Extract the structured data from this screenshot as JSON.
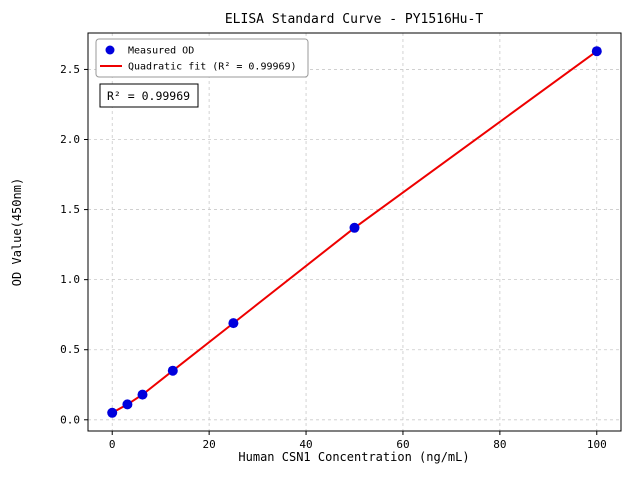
{
  "chart_data": {
    "type": "scatter",
    "title": "ELISA Standard Curve - PY1516Hu-T",
    "xlabel": "Human CSN1 Concentration (ng/mL)",
    "ylabel": "OD Value(450nm)",
    "xlim": [
      -5,
      105
    ],
    "ylim": [
      -0.08,
      2.76
    ],
    "xticks": {
      "values": [
        0,
        20,
        40,
        60,
        80,
        100
      ],
      "labels": [
        "0",
        "20",
        "40",
        "60",
        "80",
        "100"
      ]
    },
    "yticks": {
      "values": [
        0.0,
        0.5,
        1.0,
        1.5,
        2.0,
        2.5
      ],
      "labels": [
        "0.0",
        "0.5",
        "1.0",
        "1.5",
        "2.0",
        "2.5"
      ]
    },
    "grid": {
      "show": true,
      "color": "#c9c9c9",
      "dash": "3,3"
    },
    "annotation": {
      "text": "R² = 0.99969"
    },
    "legend": {
      "position": "upper-left",
      "entries": [
        {
          "label": "Measured OD",
          "marker": "circle",
          "color": "#0000dd"
        },
        {
          "label": "Quadratic fit (R² = 0.99969)",
          "marker": "line",
          "color": "#ee0000"
        }
      ]
    },
    "series": [
      {
        "name": "Measured OD",
        "type": "scatter",
        "color": "#0000dd",
        "marker_radius": 5,
        "x": [
          0,
          3.125,
          6.25,
          12.5,
          25,
          50,
          100
        ],
        "y": [
          0.05,
          0.11,
          0.18,
          0.35,
          0.69,
          1.37,
          2.63
        ]
      },
      {
        "name": "Quadratic fit (R² = 0.99969)",
        "type": "line",
        "color": "#ee0000",
        "width": 2,
        "x": [
          0,
          3.125,
          6.25,
          12.5,
          25,
          50,
          100
        ],
        "y": [
          0.05,
          0.11,
          0.18,
          0.35,
          0.69,
          1.37,
          2.63
        ]
      }
    ]
  }
}
